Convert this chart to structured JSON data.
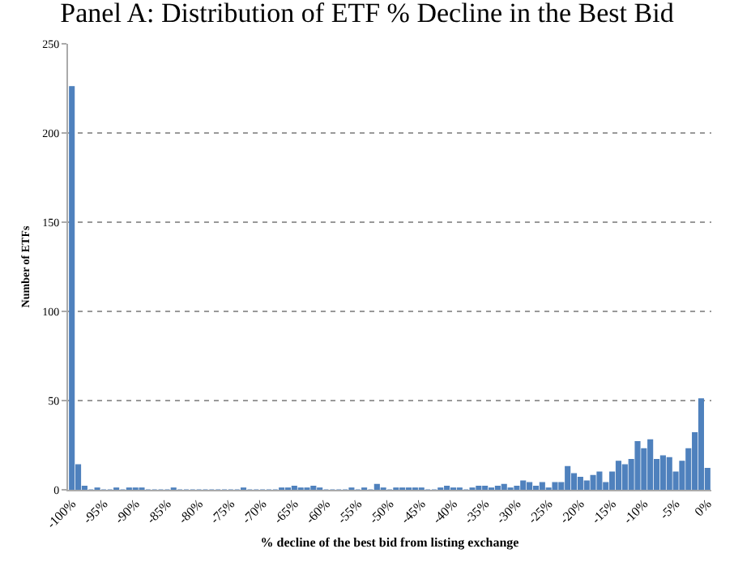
{
  "chart_data": {
    "type": "bar",
    "title": "Panel A: Distribution of ETF % Decline in the Best Bid",
    "xlabel": "% decline of the best bid from listing exchange",
    "ylabel": "Number of ETFs",
    "categories": [
      "-100%",
      null,
      null,
      null,
      null,
      "-95%",
      null,
      null,
      null,
      null,
      "-90%",
      null,
      null,
      null,
      null,
      "-85%",
      null,
      null,
      null,
      null,
      "-80%",
      null,
      null,
      null,
      null,
      "-75%",
      null,
      null,
      null,
      null,
      "-70%",
      null,
      null,
      null,
      null,
      "-65%",
      null,
      null,
      null,
      null,
      "-60%",
      null,
      null,
      null,
      null,
      "-55%",
      null,
      null,
      null,
      null,
      "-50%",
      null,
      null,
      null,
      null,
      "-45%",
      null,
      null,
      null,
      null,
      "-40%",
      null,
      null,
      null,
      null,
      "-35%",
      null,
      null,
      null,
      null,
      "-30%",
      null,
      null,
      null,
      null,
      "-25%",
      null,
      null,
      null,
      null,
      "-20%",
      null,
      null,
      null,
      null,
      "-15%",
      null,
      null,
      null,
      null,
      "-10%",
      null,
      null,
      null,
      null,
      "-5%",
      null,
      null,
      null,
      null,
      "0%"
    ],
    "values": [
      226,
      14,
      2,
      0,
      1,
      0,
      0,
      1,
      0,
      1,
      1,
      1,
      0,
      0,
      0,
      0,
      1,
      0,
      0,
      0,
      0,
      0,
      0,
      0,
      0,
      0,
      0,
      1,
      0,
      0,
      0,
      0,
      0,
      1,
      1,
      2,
      1,
      1,
      2,
      1,
      0,
      0,
      0,
      0,
      1,
      0,
      1,
      0,
      3,
      1,
      0,
      1,
      1,
      1,
      1,
      1,
      0,
      0,
      1,
      2,
      1,
      1,
      0,
      1,
      2,
      2,
      1,
      2,
      3,
      1,
      2,
      5,
      4,
      2,
      4,
      1,
      4,
      4,
      13,
      9,
      7,
      5,
      8,
      10,
      4,
      10,
      16,
      14,
      17,
      27,
      23,
      28,
      17,
      19,
      18,
      10,
      16,
      23,
      32,
      51,
      12
    ],
    "color": "#4f81bd",
    "ylim": [
      0,
      250
    ],
    "yticks": [
      0,
      50,
      100,
      150,
      200,
      250
    ],
    "grid": "y"
  }
}
